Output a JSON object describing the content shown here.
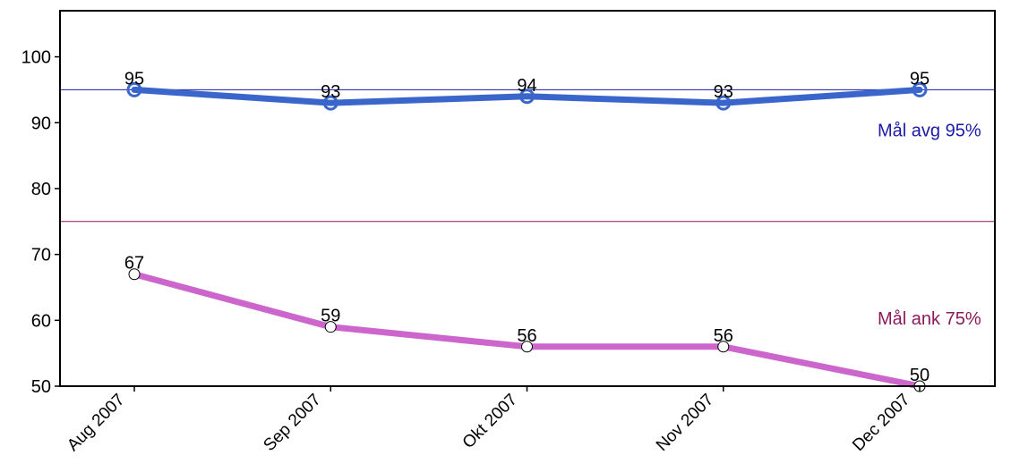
{
  "chart_data": {
    "type": "line",
    "categories": [
      "Aug 2007",
      "Sep 2007",
      "Okt 2007",
      "Nov 2007",
      "Dec 2007"
    ],
    "series": [
      {
        "values": [
          95,
          93,
          94,
          93,
          95
        ],
        "color": "#3a66cc",
        "marker": "open-circle"
      },
      {
        "values": [
          67,
          59,
          56,
          56,
          50
        ],
        "color": "#cc66cc",
        "marker": "white-filled-circle"
      }
    ],
    "target_lines": [
      {
        "label": "Mål avg 95%",
        "value": 95,
        "color": "#1a1aa6",
        "text_color": "#1a1aa6"
      },
      {
        "label": "Mål ank 75%",
        "value": 75,
        "color": "#8a1a5a",
        "text_color": "#8a1a5a"
      }
    ],
    "yticks": [
      50,
      60,
      70,
      80,
      90,
      100
    ],
    "ylim": [
      50,
      107
    ],
    "grid": false,
    "legend": "none",
    "data_labels": true
  }
}
